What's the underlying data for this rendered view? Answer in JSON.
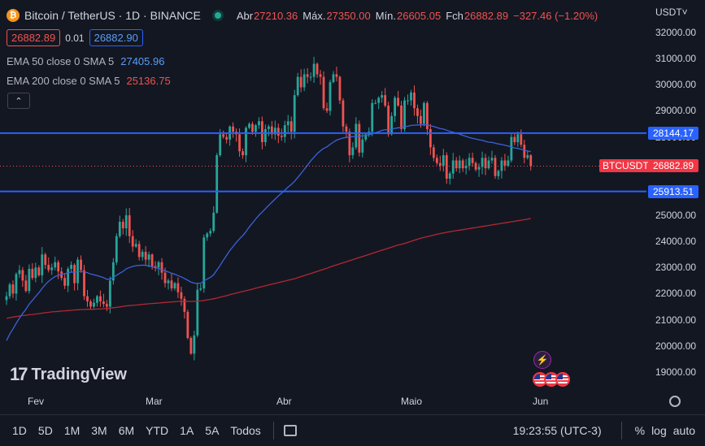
{
  "header": {
    "logo_glyph": "₿",
    "title": "Bitcoin / TetherUS · 1D · BINANCE",
    "ohlc": [
      {
        "label": "Abr",
        "value": "27210.36"
      },
      {
        "label": "Máx.",
        "value": "27350.00"
      },
      {
        "label": "Mín.",
        "value": "26605.05"
      },
      {
        "label": "Fch",
        "value": "26882.89"
      }
    ],
    "change": "−327.46 (−1.20%)"
  },
  "order": {
    "sell": "26882.89",
    "spread": "0.01",
    "buy": "26882.90"
  },
  "indicators": [
    {
      "label": "EMA 50 close 0 SMA 5",
      "value": "27405.96",
      "color": "#5b9cf6"
    },
    {
      "label": "EMA 200 close 0 SMA 5",
      "value": "25136.75",
      "color": "#ef5350"
    }
  ],
  "collapse_glyph": "⌃",
  "currency": "USDT˅",
  "y_axis": [
    "32000.00",
    "31000.00",
    "30000.00",
    "29000.00",
    "28000.00",
    "27000.00",
    "26000.00",
    "25000.00",
    "24000.00",
    "23000.00",
    "22000.00",
    "21000.00",
    "20000.00",
    "19000.00"
  ],
  "x_axis": [
    "Fev",
    "Mar",
    "Abr",
    "Maio",
    "Jun"
  ],
  "price_tags": {
    "resistance": "28144.17",
    "support": "25913.51",
    "symbol": "BTCUSDT",
    "last": "26882.89"
  },
  "brand": {
    "mark": "17",
    "name": "TradingView"
  },
  "event_glyph": "⚡",
  "bottom_bar": {
    "timeframes": [
      "1D",
      "5D",
      "1M",
      "3M",
      "6M",
      "YTD",
      "1A",
      "5A",
      "Todos"
    ],
    "time": "19:23:55 (UTC-3)",
    "percent": "%",
    "log": "log",
    "auto": "auto"
  },
  "colors": {
    "up": "#26a69a",
    "down": "#ef5350",
    "ema50": "#3a62d9",
    "ema200": "#b22833",
    "hline": "#2962ff",
    "bg": "#131722"
  },
  "chart_data": {
    "type": "candlestick",
    "ylim": [
      18500,
      32300
    ],
    "x": [
      "2023-01-13",
      "2023-06-03"
    ],
    "closes": [
      21900,
      22350,
      22000,
      22750,
      22900,
      22500,
      22100,
      22950,
      22600,
      23000,
      22700,
      23500,
      23100,
      22900,
      23000,
      23200,
      22850,
      22600,
      22300,
      22950,
      23100,
      22400,
      23300,
      22900,
      21900,
      21700,
      21500,
      21650,
      21900,
      21700,
      21600,
      21500,
      22500,
      23200,
      24200,
      24750,
      24500,
      25000,
      24200,
      23800,
      23900,
      23400,
      23600,
      23300,
      23500,
      23050,
      23000,
      23200,
      22800,
      22400,
      22500,
      22200,
      22400,
      22050,
      21800,
      21300,
      20300,
      19700,
      20400,
      22150,
      22200,
      24150,
      24300,
      24400,
      25100,
      27300,
      28100,
      28000,
      27900,
      28400,
      28200,
      28100,
      27450,
      27300,
      28350,
      28500,
      28200,
      28450,
      28600,
      27800,
      28300,
      28400,
      28100,
      28350,
      28050,
      28000,
      28450,
      28600,
      28200,
      29600,
      30300,
      29900,
      30400,
      30300,
      30300,
      30800,
      30400,
      30300,
      29100,
      29000,
      30100,
      30400,
      30300,
      29400,
      28400,
      28200,
      27300,
      27600,
      28500,
      27400,
      27900,
      28100,
      28200,
      29300,
      29300,
      29500,
      29600,
      29200,
      28100,
      28800,
      29500,
      29200,
      28300,
      29400,
      29400,
      29700,
      29100,
      28800,
      28500,
      29300,
      28300,
      27600,
      27200,
      27000,
      26900,
      27300,
      26400,
      26600,
      27100,
      26800,
      27100,
      26800,
      26900,
      27200,
      27000,
      26750,
      26850,
      27200,
      26800,
      27100,
      27200,
      26500,
      26700,
      27100,
      26900,
      27100,
      28000,
      27800,
      28100,
      27700,
      27200,
      27300,
      26882
    ],
    "ema50": [
      20200,
      20450,
      20650,
      20860,
      21060,
      21240,
      21400,
      21600,
      21740,
      21890,
      22030,
      22200,
      22350,
      22470,
      22570,
      22650,
      22700,
      22740,
      22760,
      22790,
      22820,
      22820,
      22840,
      22850,
      22840,
      22800,
      22750,
      22720,
      22690,
      22650,
      22610,
      22550,
      22550,
      22620,
      22700,
      22780,
      22850,
      22950,
      23000,
      23040,
      23070,
      23080,
      23090,
      23080,
      23060,
      23030,
      22990,
      22960,
      22920,
      22870,
      22830,
      22780,
      22740,
      22690,
      22640,
      22580,
      22510,
      22440,
      22400,
      22390,
      22400,
      22480,
      22560,
      22620,
      22720,
      22900,
      23080,
      23280,
      23460,
      23650,
      23800,
      23960,
      24100,
      24220,
      24370,
      24550,
      24700,
      24860,
      25000,
      25120,
      25250,
      25380,
      25500,
      25620,
      25740,
      25850,
      25960,
      26080,
      26180,
      26300,
      26450,
      26600,
      26760,
      26920,
      27080,
      27220,
      27360,
      27470,
      27560,
      27620,
      27720,
      27800,
      27880,
      27920,
      27960,
      27980,
      28000,
      28010,
      28030,
      28030,
      28040,
      28060,
      28080,
      28120,
      28160,
      28200,
      28250,
      28280,
      28280,
      28300,
      28330,
      28350,
      28360,
      28390,
      28410,
      28440,
      28450,
      28460,
      28460,
      28470,
      28460,
      28430,
      28400,
      28360,
      28320,
      28300,
      28260,
      28210,
      28180,
      28140,
      28110,
      28060,
      28020,
      27980,
      27950,
      27920,
      27890,
      27870,
      27830,
      27800,
      27790,
      27760,
      27730,
      27710,
      27680,
      27650,
      27620,
      27580,
      27560,
      27530,
      27500,
      27460,
      27440
    ],
    "ema200": [
      21050,
      21080,
      21100,
      21120,
      21140,
      21160,
      21170,
      21190,
      21200,
      21220,
      21230,
      21250,
      21270,
      21280,
      21300,
      21310,
      21320,
      21330,
      21340,
      21350,
      21360,
      21370,
      21380,
      21390,
      21390,
      21400,
      21400,
      21400,
      21410,
      21410,
      21420,
      21430,
      21440,
      21460,
      21470,
      21490,
      21510,
      21530,
      21540,
      21550,
      21560,
      21570,
      21590,
      21600,
      21610,
      21620,
      21630,
      21640,
      21650,
      21660,
      21670,
      21680,
      21690,
      21700,
      21700,
      21700,
      21700,
      21700,
      21700,
      21710,
      21720,
      21740,
      21760,
      21780,
      21800,
      21830,
      21860,
      21890,
      21920,
      21960,
      21990,
      22020,
      22050,
      22080,
      22110,
      22140,
      22170,
      22210,
      22240,
      22270,
      22300,
      22330,
      22360,
      22390,
      22420,
      22450,
      22480,
      22510,
      22540,
      22570,
      22610,
      22650,
      22690,
      22730,
      22770,
      22810,
      22850,
      22890,
      22930,
      22970,
      23020,
      23060,
      23100,
      23140,
      23180,
      23220,
      23260,
      23300,
      23340,
      23380,
      23420,
      23460,
      23500,
      23540,
      23580,
      23620,
      23660,
      23700,
      23740,
      23780,
      23820,
      23860,
      23890,
      23920,
      23960,
      24000,
      24040,
      24080,
      24120,
      24150,
      24180,
      24210,
      24240,
      24270,
      24300,
      24320,
      24350,
      24370,
      24390,
      24410,
      24430,
      24450,
      24470,
      24490,
      24510,
      24530,
      24550,
      24570,
      24590,
      24610,
      24630,
      24650,
      24670,
      24690,
      24710,
      24730,
      24750,
      24770,
      24790,
      24810,
      24830,
      24850,
      24880
    ],
    "hlines": [
      28144.17,
      25913.51
    ],
    "last": 26882.89
  }
}
